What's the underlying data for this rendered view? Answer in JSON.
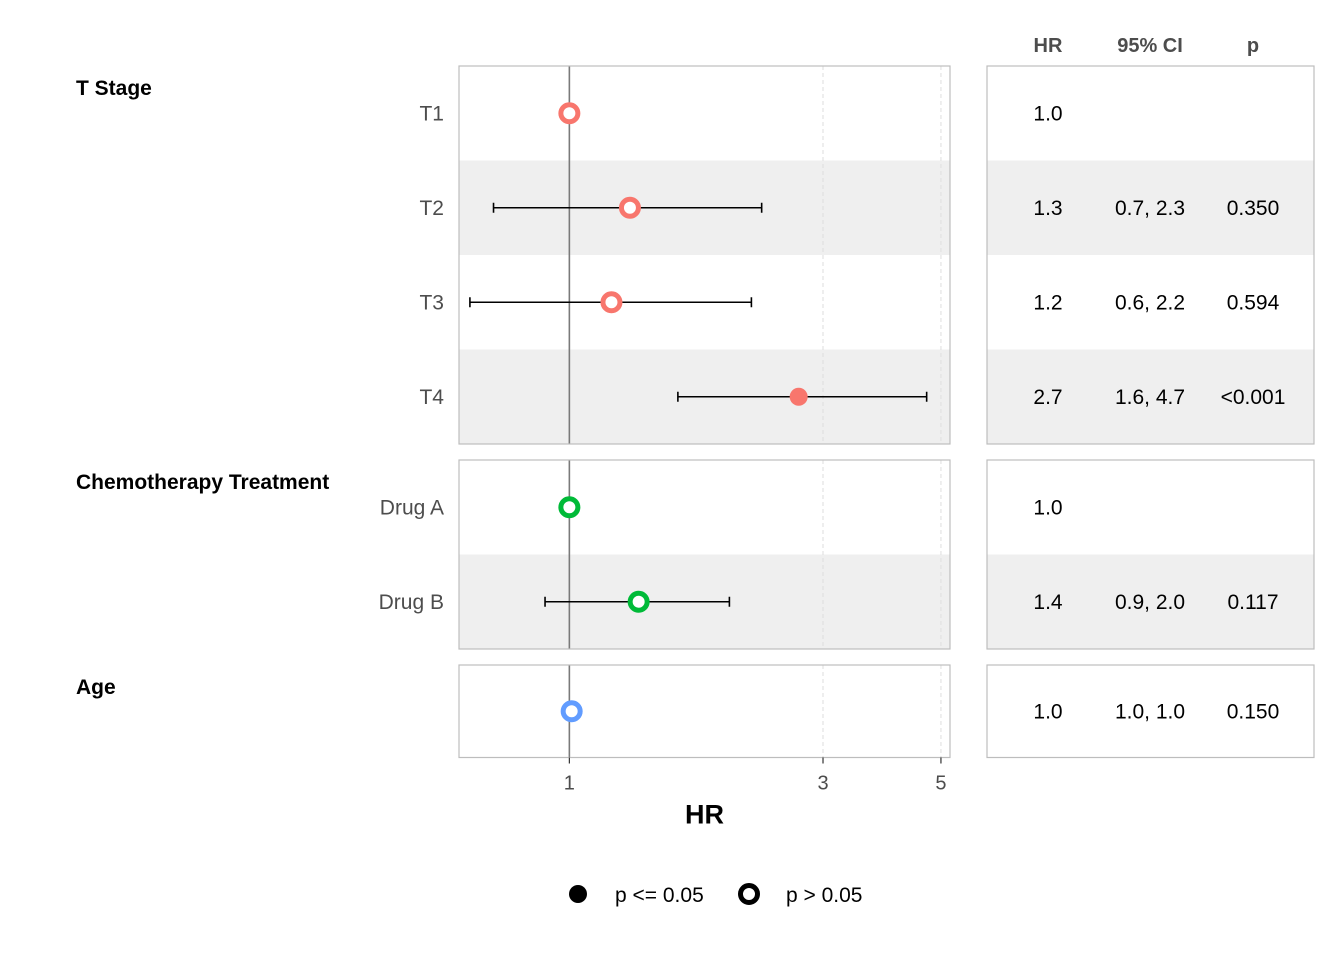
{
  "chart_data": {
    "type": "forest",
    "xlabel": "HR",
    "x_scale": "log",
    "xlim": [
      0.62,
      5.2
    ],
    "x_ticks": [
      1,
      3,
      5
    ],
    "x_tick_labels": [
      "1",
      "3",
      "5"
    ],
    "reference_line": 1,
    "grid": "vertical dashed at tick values",
    "table_headers": [
      "HR",
      "95% CI",
      "p"
    ],
    "groups": [
      {
        "name": "T Stage",
        "color": "#F8766D",
        "rows": [
          {
            "label": "T1",
            "hr": 1.0,
            "ci_low": null,
            "ci_high": null,
            "significant": false,
            "hr_text": "1.0",
            "ci_text": "",
            "p_text": ""
          },
          {
            "label": "T2",
            "hr": 1.3,
            "ci_low": 0.72,
            "ci_high": 2.3,
            "significant": false,
            "hr_text": "1.3",
            "ci_text": "0.7, 2.3",
            "p_text": "0.350"
          },
          {
            "label": "T3",
            "hr": 1.2,
            "ci_low": 0.65,
            "ci_high": 2.2,
            "significant": false,
            "hr_text": "1.2",
            "ci_text": "0.6, 2.2",
            "p_text": "0.594"
          },
          {
            "label": "T4",
            "hr": 2.7,
            "ci_low": 1.6,
            "ci_high": 4.7,
            "significant": true,
            "hr_text": "2.7",
            "ci_text": "1.6, 4.7",
            "p_text": "<0.001"
          }
        ]
      },
      {
        "name": "Chemotherapy Treatment",
        "color": "#00BA38",
        "rows": [
          {
            "label": "Drug A",
            "hr": 1.0,
            "ci_low": null,
            "ci_high": null,
            "significant": false,
            "hr_text": "1.0",
            "ci_text": "",
            "p_text": ""
          },
          {
            "label": "Drug B",
            "hr": 1.35,
            "ci_low": 0.9,
            "ci_high": 2.0,
            "significant": false,
            "hr_text": "1.4",
            "ci_text": "0.9, 2.0",
            "p_text": "0.117"
          }
        ]
      },
      {
        "name": "Age",
        "color": "#619CFF",
        "rows": [
          {
            "label": "",
            "hr": 1.01,
            "ci_low": null,
            "ci_high": null,
            "significant": false,
            "hr_text": "1.0",
            "ci_text": "1.0, 1.0",
            "p_text": "0.150"
          }
        ]
      }
    ],
    "legend": {
      "position": "bottom",
      "items": [
        {
          "label": "p <= 0.05",
          "shape": "filled-circle"
        },
        {
          "label": "p > 0.05",
          "shape": "open-circle"
        }
      ]
    }
  }
}
